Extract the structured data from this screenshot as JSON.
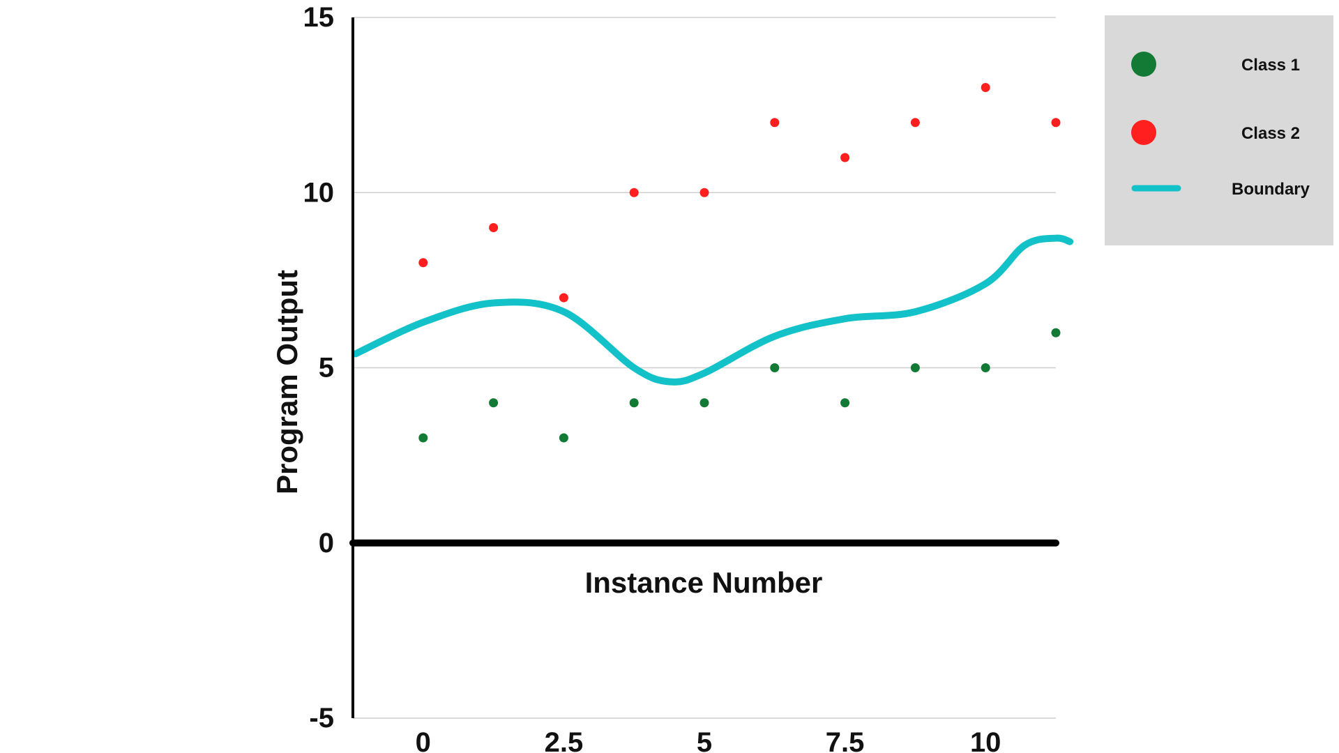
{
  "chart_data": {
    "type": "scatter",
    "title": "",
    "xlabel": "Instance Number",
    "ylabel": "Program Output",
    "xlim": [
      -1.25,
      11.25
    ],
    "ylim": [
      -5,
      15
    ],
    "x_ticks": [
      0,
      2.5,
      5,
      7.5,
      10
    ],
    "x_tick_labels": [
      "0",
      "2.5",
      "5",
      "7.5",
      "10"
    ],
    "y_ticks": [
      -5,
      0,
      5,
      10,
      15
    ],
    "y_tick_labels": [
      "-5",
      "0",
      "5",
      "10",
      "15"
    ],
    "grid": "horizontal",
    "legend_position": "top-right",
    "series": [
      {
        "name": "Class 1",
        "kind": "points",
        "color": "#127a34",
        "x": [
          0,
          1.25,
          2.5,
          3.75,
          5,
          6.25,
          7.5,
          8.75,
          10,
          11.25
        ],
        "y": [
          3,
          4,
          3,
          4,
          4,
          5,
          4,
          5,
          5,
          6
        ]
      },
      {
        "name": "Class 2",
        "kind": "points",
        "color": "#ff1f1f",
        "x": [
          0,
          1.25,
          2.5,
          3.75,
          5,
          6.25,
          7.5,
          8.75,
          10,
          11.25
        ],
        "y": [
          8,
          9,
          7,
          10,
          10,
          12,
          11,
          12,
          13,
          12
        ]
      },
      {
        "name": "Boundary",
        "kind": "curve",
        "color": "#12c2c8",
        "x": [
          -1.2,
          0,
          1.25,
          2.5,
          3.75,
          4.4,
          5,
          6.25,
          7.5,
          8.75,
          10,
          10.7,
          11.25,
          11.5
        ],
        "y": [
          5.4,
          6.3,
          6.85,
          6.6,
          5.0,
          4.6,
          4.85,
          5.9,
          6.4,
          6.6,
          7.4,
          8.5,
          8.7,
          8.6
        ]
      }
    ]
  }
}
